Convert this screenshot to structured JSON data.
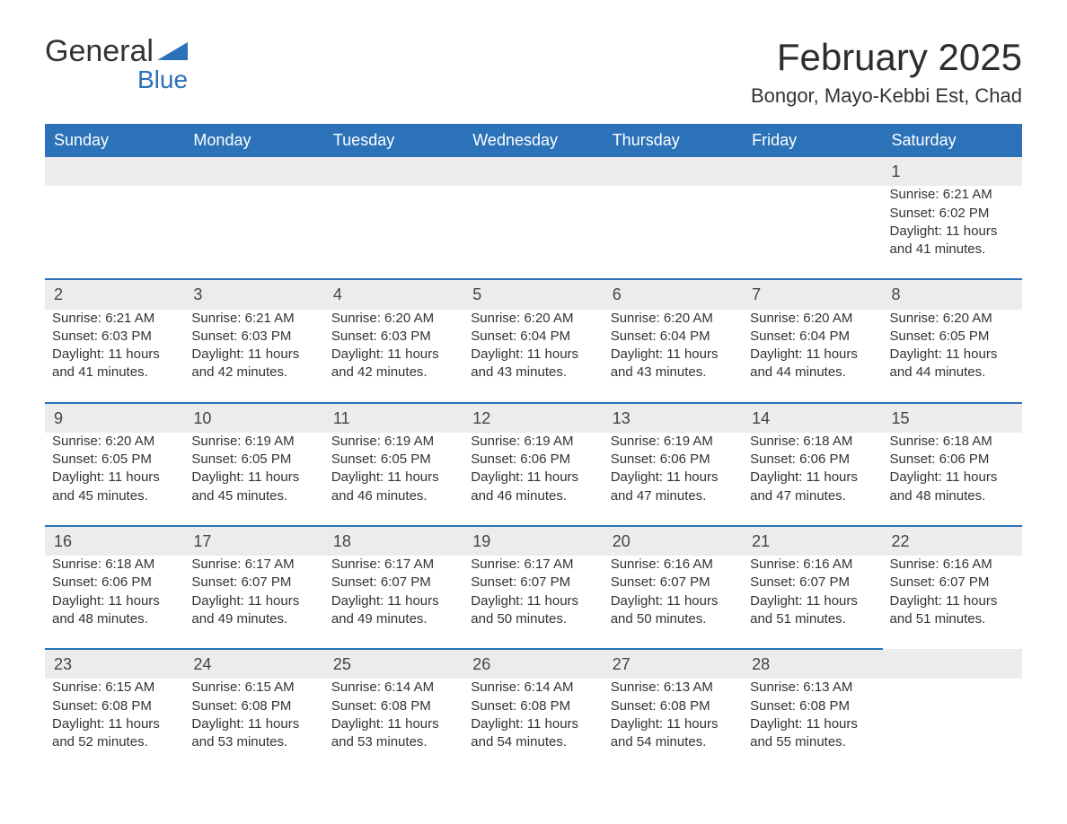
{
  "logo": {
    "text1": "General",
    "text2": "Blue",
    "icon_color": "#2b72b9"
  },
  "title": "February 2025",
  "location": "Bongor, Mayo-Kebbi Est, Chad",
  "colors": {
    "header_bg": "#2b72b9",
    "header_text": "#ffffff",
    "daynum_bg": "#ececec",
    "daynum_border": "#2b72b9",
    "body_text": "#333333",
    "background": "#ffffff"
  },
  "day_headers": [
    "Sunday",
    "Monday",
    "Tuesday",
    "Wednesday",
    "Thursday",
    "Friday",
    "Saturday"
  ],
  "weeks": [
    [
      null,
      null,
      null,
      null,
      null,
      null,
      {
        "n": "1",
        "sunrise": "Sunrise: 6:21 AM",
        "sunset": "Sunset: 6:02 PM",
        "daylight": "Daylight: 11 hours and 41 minutes."
      }
    ],
    [
      {
        "n": "2",
        "sunrise": "Sunrise: 6:21 AM",
        "sunset": "Sunset: 6:03 PM",
        "daylight": "Daylight: 11 hours and 41 minutes."
      },
      {
        "n": "3",
        "sunrise": "Sunrise: 6:21 AM",
        "sunset": "Sunset: 6:03 PM",
        "daylight": "Daylight: 11 hours and 42 minutes."
      },
      {
        "n": "4",
        "sunrise": "Sunrise: 6:20 AM",
        "sunset": "Sunset: 6:03 PM",
        "daylight": "Daylight: 11 hours and 42 minutes."
      },
      {
        "n": "5",
        "sunrise": "Sunrise: 6:20 AM",
        "sunset": "Sunset: 6:04 PM",
        "daylight": "Daylight: 11 hours and 43 minutes."
      },
      {
        "n": "6",
        "sunrise": "Sunrise: 6:20 AM",
        "sunset": "Sunset: 6:04 PM",
        "daylight": "Daylight: 11 hours and 43 minutes."
      },
      {
        "n": "7",
        "sunrise": "Sunrise: 6:20 AM",
        "sunset": "Sunset: 6:04 PM",
        "daylight": "Daylight: 11 hours and 44 minutes."
      },
      {
        "n": "8",
        "sunrise": "Sunrise: 6:20 AM",
        "sunset": "Sunset: 6:05 PM",
        "daylight": "Daylight: 11 hours and 44 minutes."
      }
    ],
    [
      {
        "n": "9",
        "sunrise": "Sunrise: 6:20 AM",
        "sunset": "Sunset: 6:05 PM",
        "daylight": "Daylight: 11 hours and 45 minutes."
      },
      {
        "n": "10",
        "sunrise": "Sunrise: 6:19 AM",
        "sunset": "Sunset: 6:05 PM",
        "daylight": "Daylight: 11 hours and 45 minutes."
      },
      {
        "n": "11",
        "sunrise": "Sunrise: 6:19 AM",
        "sunset": "Sunset: 6:05 PM",
        "daylight": "Daylight: 11 hours and 46 minutes."
      },
      {
        "n": "12",
        "sunrise": "Sunrise: 6:19 AM",
        "sunset": "Sunset: 6:06 PM",
        "daylight": "Daylight: 11 hours and 46 minutes."
      },
      {
        "n": "13",
        "sunrise": "Sunrise: 6:19 AM",
        "sunset": "Sunset: 6:06 PM",
        "daylight": "Daylight: 11 hours and 47 minutes."
      },
      {
        "n": "14",
        "sunrise": "Sunrise: 6:18 AM",
        "sunset": "Sunset: 6:06 PM",
        "daylight": "Daylight: 11 hours and 47 minutes."
      },
      {
        "n": "15",
        "sunrise": "Sunrise: 6:18 AM",
        "sunset": "Sunset: 6:06 PM",
        "daylight": "Daylight: 11 hours and 48 minutes."
      }
    ],
    [
      {
        "n": "16",
        "sunrise": "Sunrise: 6:18 AM",
        "sunset": "Sunset: 6:06 PM",
        "daylight": "Daylight: 11 hours and 48 minutes."
      },
      {
        "n": "17",
        "sunrise": "Sunrise: 6:17 AM",
        "sunset": "Sunset: 6:07 PM",
        "daylight": "Daylight: 11 hours and 49 minutes."
      },
      {
        "n": "18",
        "sunrise": "Sunrise: 6:17 AM",
        "sunset": "Sunset: 6:07 PM",
        "daylight": "Daylight: 11 hours and 49 minutes."
      },
      {
        "n": "19",
        "sunrise": "Sunrise: 6:17 AM",
        "sunset": "Sunset: 6:07 PM",
        "daylight": "Daylight: 11 hours and 50 minutes."
      },
      {
        "n": "20",
        "sunrise": "Sunrise: 6:16 AM",
        "sunset": "Sunset: 6:07 PM",
        "daylight": "Daylight: 11 hours and 50 minutes."
      },
      {
        "n": "21",
        "sunrise": "Sunrise: 6:16 AM",
        "sunset": "Sunset: 6:07 PM",
        "daylight": "Daylight: 11 hours and 51 minutes."
      },
      {
        "n": "22",
        "sunrise": "Sunrise: 6:16 AM",
        "sunset": "Sunset: 6:07 PM",
        "daylight": "Daylight: 11 hours and 51 minutes."
      }
    ],
    [
      {
        "n": "23",
        "sunrise": "Sunrise: 6:15 AM",
        "sunset": "Sunset: 6:08 PM",
        "daylight": "Daylight: 11 hours and 52 minutes."
      },
      {
        "n": "24",
        "sunrise": "Sunrise: 6:15 AM",
        "sunset": "Sunset: 6:08 PM",
        "daylight": "Daylight: 11 hours and 53 minutes."
      },
      {
        "n": "25",
        "sunrise": "Sunrise: 6:14 AM",
        "sunset": "Sunset: 6:08 PM",
        "daylight": "Daylight: 11 hours and 53 minutes."
      },
      {
        "n": "26",
        "sunrise": "Sunrise: 6:14 AM",
        "sunset": "Sunset: 6:08 PM",
        "daylight": "Daylight: 11 hours and 54 minutes."
      },
      {
        "n": "27",
        "sunrise": "Sunrise: 6:13 AM",
        "sunset": "Sunset: 6:08 PM",
        "daylight": "Daylight: 11 hours and 54 minutes."
      },
      {
        "n": "28",
        "sunrise": "Sunrise: 6:13 AM",
        "sunset": "Sunset: 6:08 PM",
        "daylight": "Daylight: 11 hours and 55 minutes."
      },
      null
    ]
  ]
}
